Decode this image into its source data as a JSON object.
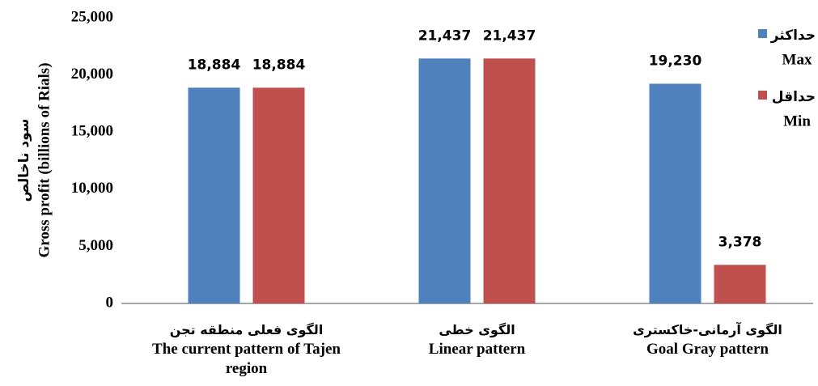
{
  "chart_data": {
    "type": "bar",
    "y_label_fa": "سود ناخالص",
    "y_label": "Gross profit (billions of Rials)",
    "categories": [
      "The current pattern of Tajen region",
      "Linear pattern",
      "Goal Gray pattern"
    ],
    "categories_fa": [
      "الگوی فعلی منطقه تجن",
      "الگوی خطی",
      "الگوی آرمانی-خاکستری"
    ],
    "series": [
      {
        "name": "حداکثر",
        "name_en": "Max",
        "color": "#4f81bd",
        "values": [
          18884,
          21437,
          19230
        ],
        "value_labels": [
          "18,884",
          "21,437",
          "19,230"
        ]
      },
      {
        "name": "حداقل",
        "name_en": "Min",
        "color": "#c0504d",
        "values": [
          18884,
          21437,
          3378
        ],
        "value_labels": [
          "18,884",
          "21,437",
          "3,378"
        ]
      }
    ],
    "ylim": [
      0,
      25000
    ],
    "yticks": [
      0,
      {
        "value": 5000,
        "label": "5,000"
      },
      {
        "value": 10000,
        "label": "10,000"
      },
      {
        "value": 15000,
        "label": "15,000"
      },
      {
        "value": 20000,
        "label": "20,000"
      },
      {
        "value": 25000,
        "label": "25,000"
      }
    ],
    "legend": "right",
    "grid": false
  }
}
